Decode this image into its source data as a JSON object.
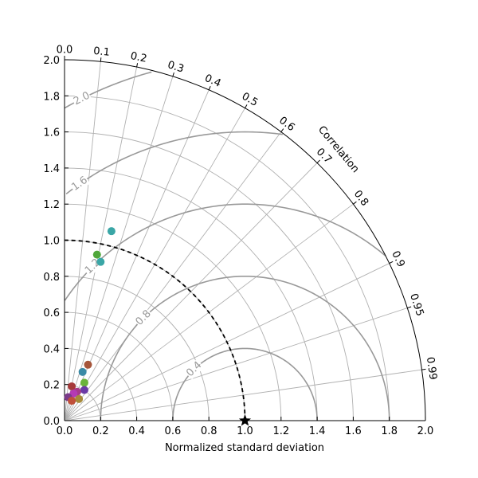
{
  "chart_data": {
    "type": "taylor_diagram",
    "xlabel": "Normalized standard deviation",
    "ylabel_left_ticks": [
      "0.0",
      "0.2",
      "0.4",
      "0.6",
      "0.8",
      "1.0",
      "1.2",
      "1.4",
      "1.6",
      "1.8",
      "2.0"
    ],
    "xticks": [
      "0.0",
      "0.2",
      "0.4",
      "0.6",
      "0.8",
      "1.0",
      "1.2",
      "1.4",
      "1.6",
      "1.8",
      "2.0"
    ],
    "angular_axis_label": "Correlation",
    "correlation_ticks": [
      "0.0",
      "0.1",
      "0.2",
      "0.3",
      "0.4",
      "0.5",
      "0.6",
      "0.7",
      "0.8",
      "0.9",
      "0.95",
      "0.99"
    ],
    "std_range": [
      0,
      2.0
    ],
    "reference": {
      "std": 1.0,
      "marker": "star"
    },
    "rmsd_contours": [
      0.4,
      0.8,
      1.2,
      1.6,
      2.0
    ],
    "rmsd_contour_labels": [
      "0.4",
      "0.8",
      "1.2",
      "1.6",
      "2.0"
    ],
    "points": [
      {
        "x": 0.26,
        "y": 1.05,
        "color": "#3aa6a6"
      },
      {
        "x": 0.18,
        "y": 0.92,
        "color": "#4fa63a"
      },
      {
        "x": 0.2,
        "y": 0.88,
        "color": "#3aa6a6"
      },
      {
        "x": 0.13,
        "y": 0.31,
        "color": "#a6553a"
      },
      {
        "x": 0.1,
        "y": 0.27,
        "color": "#3a8aa6"
      },
      {
        "x": 0.11,
        "y": 0.21,
        "color": "#6ab43a"
      },
      {
        "x": 0.04,
        "y": 0.19,
        "color": "#a63a3a"
      },
      {
        "x": 0.11,
        "y": 0.17,
        "color": "#6a3aa6"
      },
      {
        "x": 0.07,
        "y": 0.16,
        "color": "#a63a8a"
      },
      {
        "x": 0.05,
        "y": 0.15,
        "color": "#b43ab4"
      },
      {
        "x": 0.02,
        "y": 0.13,
        "color": "#7a3a8a"
      },
      {
        "x": 0.08,
        "y": 0.12,
        "color": "#a68a3a"
      },
      {
        "x": 0.04,
        "y": 0.11,
        "color": "#c0503a"
      }
    ]
  }
}
